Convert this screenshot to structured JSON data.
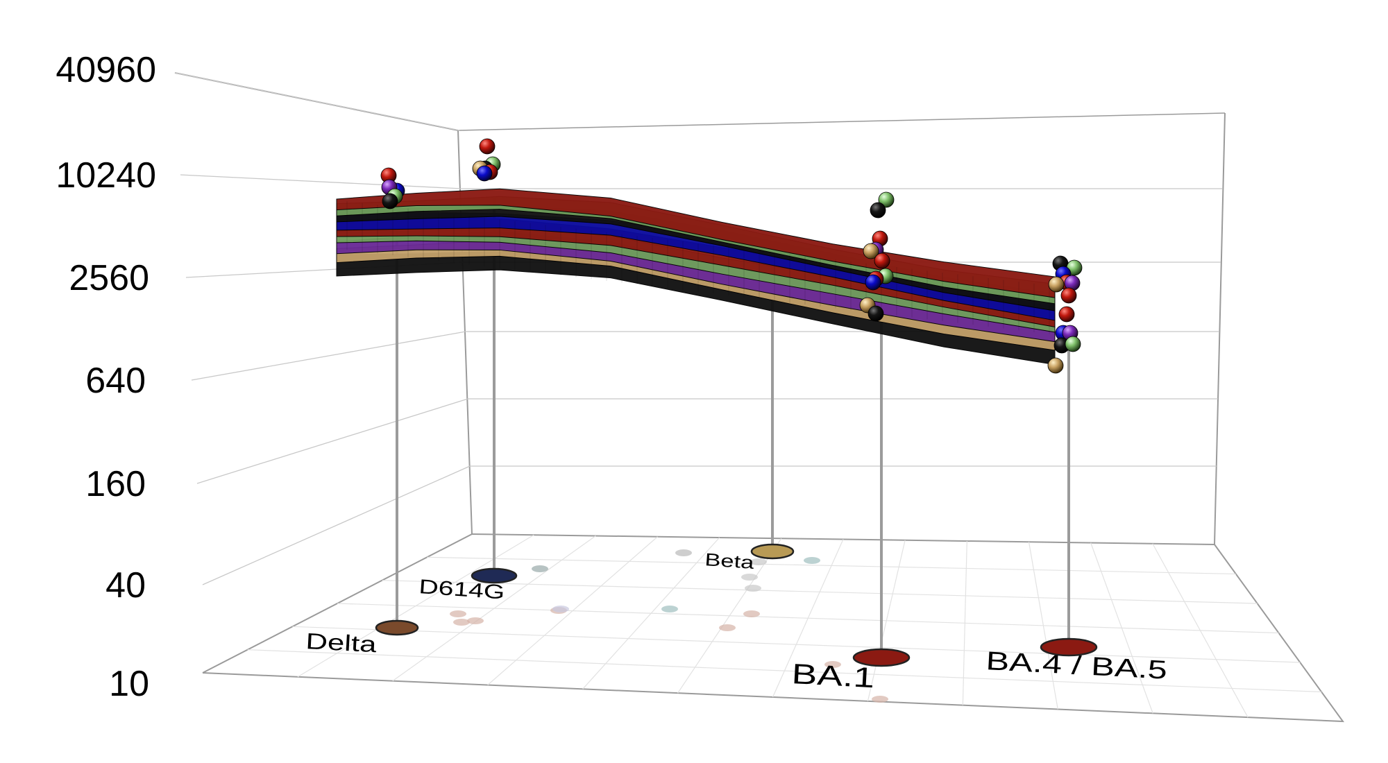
{
  "chart_data": {
    "type": "3d-surface",
    "title": "",
    "yscale": "log2",
    "y_ticks": [
      "40960",
      "10240",
      "2560",
      "640",
      "160",
      "40",
      "10"
    ],
    "ylim": [
      10,
      40960
    ],
    "variants": [
      {
        "name": "Delta",
        "color": "#7a4a2c",
        "titers": [
          7600,
          7100,
          6600,
          6200,
          5800
        ]
      },
      {
        "name": "D614G",
        "color": "#1f2a55",
        "titers": [
          8800,
          8200,
          7600,
          7100,
          6700
        ]
      },
      {
        "name": "Beta",
        "color": "#b89a55",
        "titers": []
      },
      {
        "name": "BA.1",
        "color": "#8b1a12",
        "titers": [
          4200,
          3900,
          3600,
          3300,
          3000,
          2600,
          2300,
          2000
        ]
      },
      {
        "name": "BA.4 / BA.5",
        "color": "#8b1a12",
        "titers": [
          2700,
          2500,
          2300,
          2100,
          1900,
          1600,
          1400,
          1200,
          1000,
          800
        ]
      }
    ],
    "series_colors": [
      "#8b1a12",
      "#0b0b9e",
      "#6f9e5c",
      "#6a2a96",
      "#c2a06a",
      "#111111"
    ],
    "grid": true
  }
}
